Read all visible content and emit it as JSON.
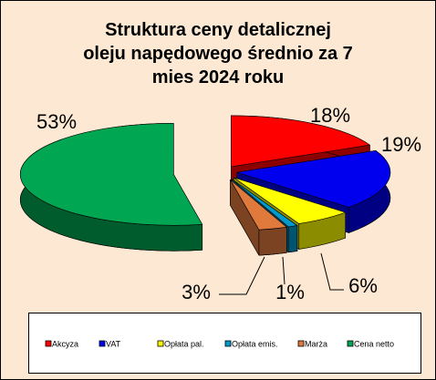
{
  "chart_data": {
    "type": "pie3d",
    "title": "Struktura ceny detalicznej oleju napędowego średnio za 7 mies 2024 roku",
    "categories": [
      "Akcyza",
      "VAT",
      "Opłata pal.",
      "Opłata emis.",
      "Marża",
      "Cena netto"
    ],
    "values": [
      18,
      19,
      6,
      1,
      3,
      53
    ],
    "value_labels": [
      "18%",
      "19%",
      "6%",
      "1%",
      "3%",
      "53%"
    ],
    "colors": [
      "#ff0000",
      "#0000ee",
      "#ffff00",
      "#0099cc",
      "#e07a3c",
      "#00a651"
    ],
    "legend": "bottom"
  }
}
